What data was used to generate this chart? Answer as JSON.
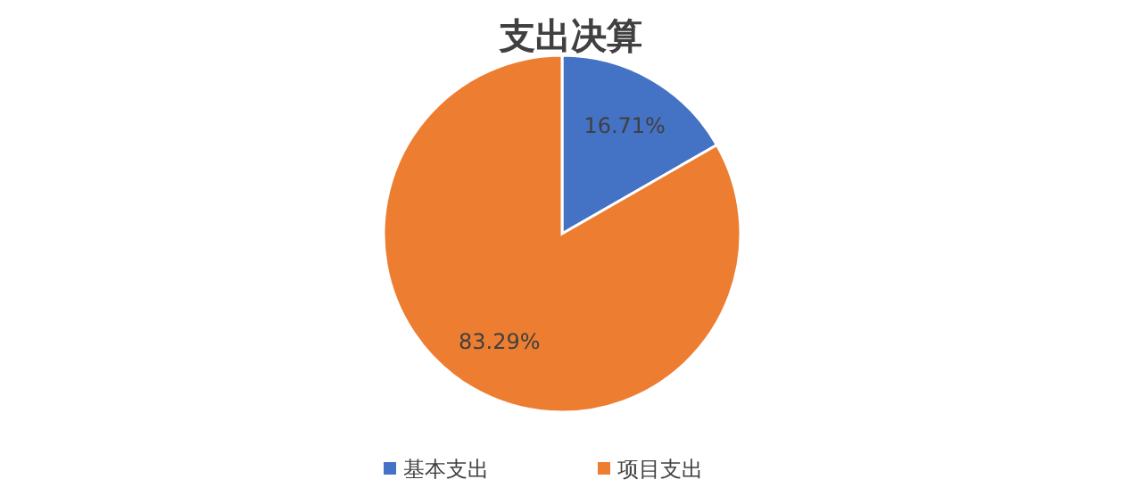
{
  "chart_data": {
    "type": "pie",
    "title": "支出决算",
    "categories": [
      "基本支出",
      "项目支出"
    ],
    "values": [
      16.71,
      83.29
    ],
    "colors": [
      "#4472c4",
      "#ed7d31"
    ],
    "value_labels": [
      "16.71%",
      "83.29%"
    ],
    "legend": "bottom"
  }
}
